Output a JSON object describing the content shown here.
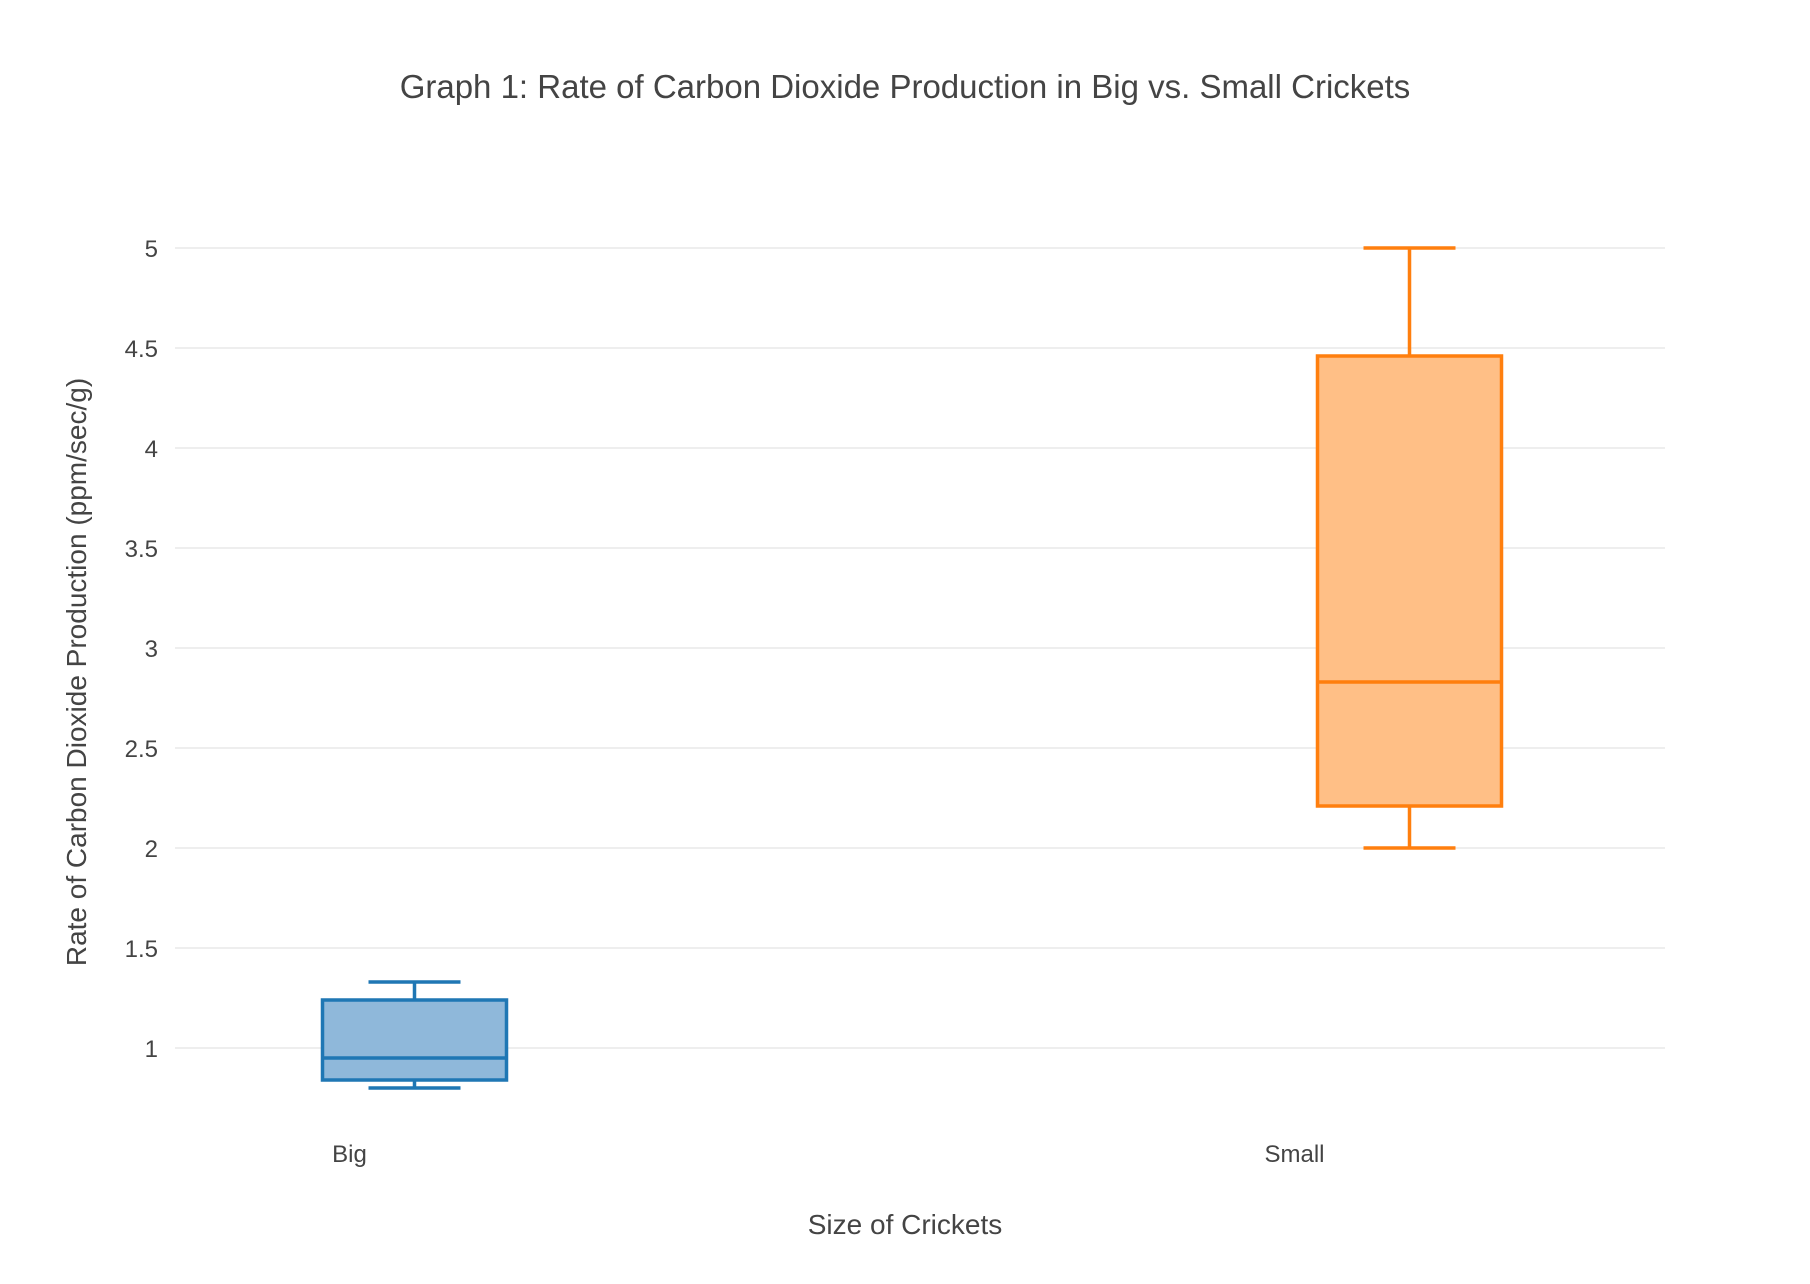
{
  "chart_data": {
    "type": "box",
    "title": "Graph 1: Rate of Carbon Dioxide Production in Big vs. Small Crickets",
    "xlabel": "Size of Crickets",
    "ylabel": "Rate of Carbon Dioxide Production (ppm/sec/g)",
    "ylim": [
      0.6,
      5.35
    ],
    "yticks": [
      1,
      1.5,
      2,
      2.5,
      3,
      3.5,
      4,
      4.5,
      5
    ],
    "ytick_labels": [
      "1",
      "1.5",
      "2",
      "2.5",
      "3",
      "3.5",
      "4",
      "4.5",
      "5"
    ],
    "grid": true,
    "categories": [
      "Big",
      "Small"
    ],
    "series": [
      {
        "name": "Big",
        "min": 0.8,
        "q1": 0.84,
        "median": 0.95,
        "q3": 1.24,
        "max": 1.33,
        "line_color": "#1f77b4",
        "fill_color": "#8fb8da"
      },
      {
        "name": "Small",
        "min": 2.0,
        "q1": 2.21,
        "median": 2.83,
        "q3": 4.46,
        "max": 5.0,
        "line_color": "#ff7f0e",
        "fill_color": "#ffbf86"
      }
    ]
  }
}
